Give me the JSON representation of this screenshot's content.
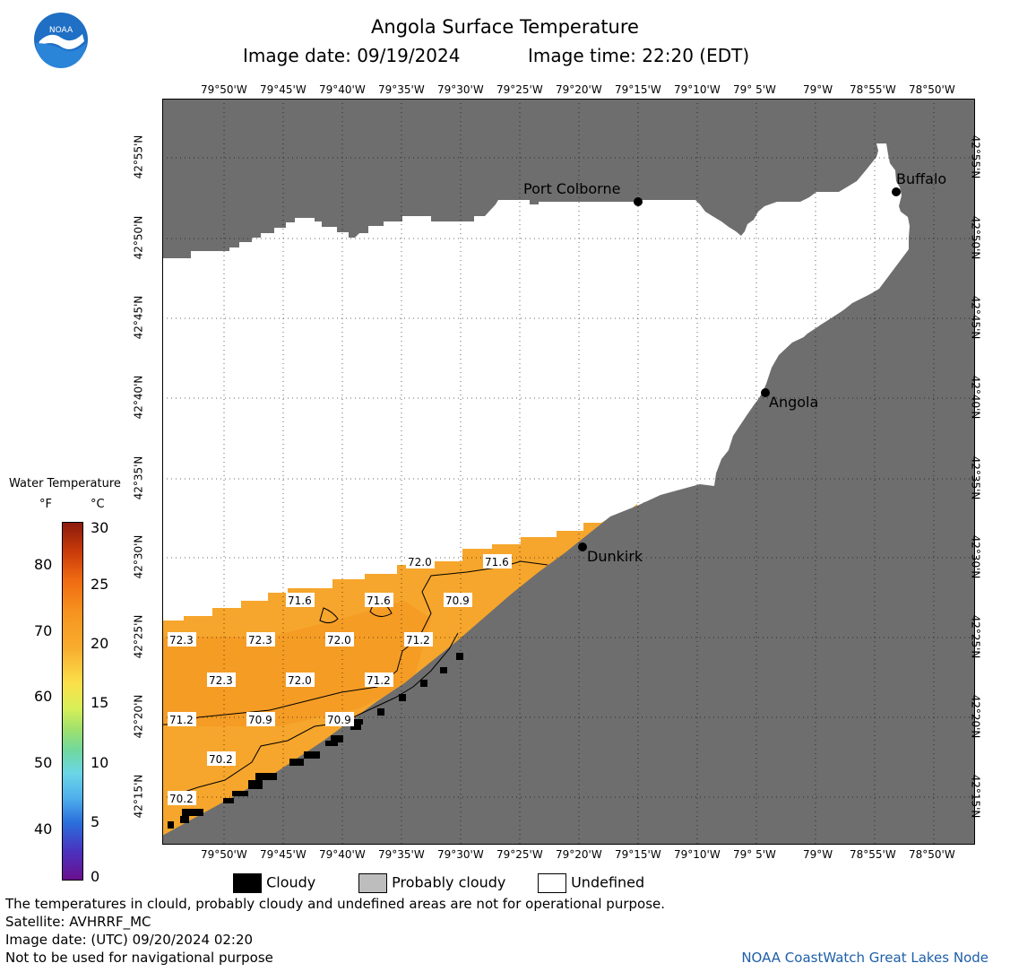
{
  "header": {
    "title": "Angola Surface Temperature",
    "image_date": "Image date: 09/19/2024",
    "image_time": "Image time: 22:20 (EDT)"
  },
  "logo": {
    "text": "NOAA"
  },
  "longitude_labels": [
    "79°50'W",
    "79°45'W",
    "79°40'W",
    "79°35'W",
    "79°30'W",
    "79°25'W",
    "79°20'W",
    "79°15'W",
    "79°10'W",
    "79° 5'W",
    "79°W",
    "78°55'W",
    "78°50'W"
  ],
  "latitude_labels": [
    "42°55'N",
    "42°50'N",
    "42°45'N",
    "42°40'N",
    "42°35'N",
    "42°30'N",
    "42°25'N",
    "42°20'N",
    "42°15'N"
  ],
  "cities": [
    {
      "name": "Port Colborne"
    },
    {
      "name": "Buffalo"
    },
    {
      "name": "Angola"
    },
    {
      "name": "Dunkirk"
    }
  ],
  "temperature_labels": [
    "72.0",
    "71.6",
    "71.6",
    "71.6",
    "70.9",
    "72.3",
    "72.3",
    "72.0",
    "71.2",
    "72.3",
    "72.0",
    "71.2",
    "71.2",
    "70.9",
    "70.9",
    "70.2",
    "70.2"
  ],
  "colorbar": {
    "title": "Water Temperature",
    "unit_f": "°F",
    "unit_c": "°C",
    "f_ticks": [
      "80",
      "70",
      "60",
      "50",
      "40"
    ],
    "c_ticks": [
      "30",
      "25",
      "20",
      "15",
      "10",
      "5",
      "0"
    ]
  },
  "legend": {
    "cloudy": "Cloudy",
    "probably_cloudy": "Probably cloudy",
    "undefined": "Undefined"
  },
  "footer": {
    "line1": "The temperatures in clould, probably cloudy and undefined areas are not for operational purpose.",
    "line2": "Satellite: AVHRRF_MC",
    "line3": "Image date: (UTC) 09/20/2024  02:20",
    "line4": "Not to be used for navigational purpose",
    "credit": "NOAA CoastWatch Great Lakes Node"
  },
  "colors": {
    "land": "#6e6e6e",
    "undefined_water": "#ffffff",
    "warm_water": "#f6921e",
    "cloud": "#000000",
    "probably_cloudy": "#bdbdbd"
  }
}
